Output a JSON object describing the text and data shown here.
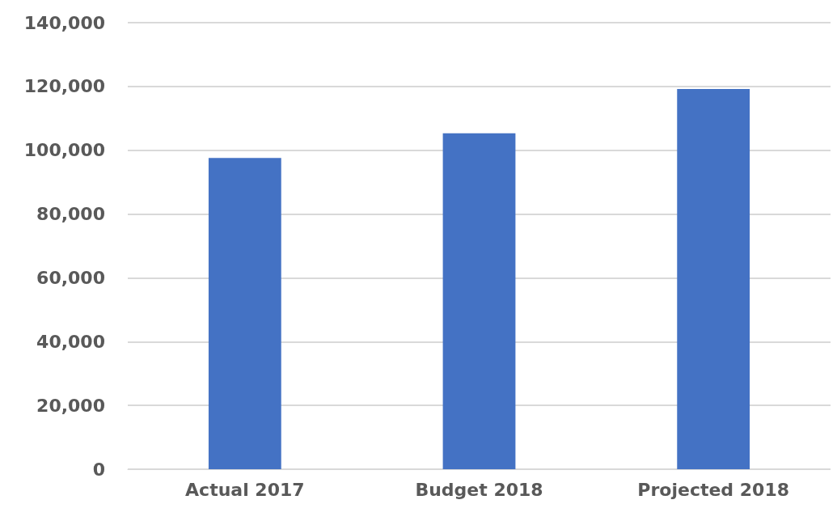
{
  "chart_data": {
    "type": "bar",
    "categories": [
      "Actual 2017",
      "Budget 2018",
      "Projected 2018"
    ],
    "values": [
      97600,
      105300,
      119200
    ],
    "color": "#4472c4",
    "ylim": [
      0,
      140000
    ],
    "yticks": [
      0,
      {
        "value": 20000,
        "label": "20,000"
      },
      {
        "value": 40000,
        "label": "40,000"
      },
      {
        "value": 60000,
        "label": "60,000"
      },
      {
        "value": 80000,
        "label": "80,000"
      },
      {
        "value": 100000,
        "label": "100,000"
      },
      {
        "value": 120000,
        "label": "120,000"
      },
      {
        "value": 140000,
        "label": "140,000"
      }
    ],
    "grid": "y"
  }
}
